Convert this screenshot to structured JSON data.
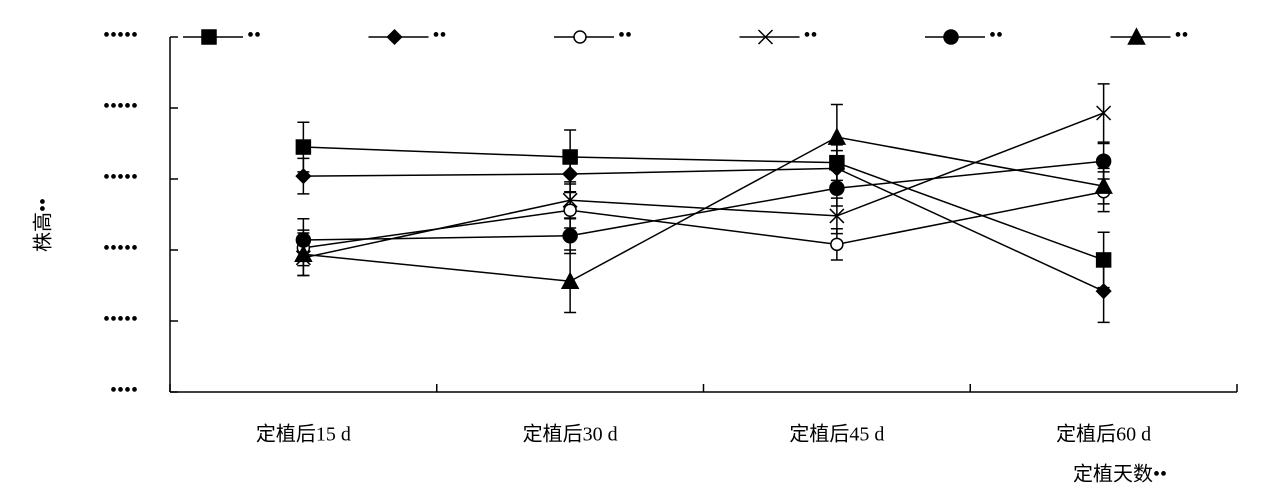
{
  "chart_data": {
    "type": "line",
    "x_label": "定植天数••",
    "y_label": "株高••",
    "categories": [
      "定植后15 d",
      "定植后30 d",
      "定植后45 d",
      "定植后60 d"
    ],
    "ylim": [
      0,
      50
    ],
    "yticks": [
      {
        "value": 0,
        "label": "••••"
      },
      {
        "value": 10,
        "label": "•••••"
      },
      {
        "value": 20,
        "label": "•••••"
      },
      {
        "value": 30,
        "label": "•••••"
      },
      {
        "value": 40,
        "label": "•••••"
      },
      {
        "value": 50,
        "label": "•••••"
      }
    ],
    "series": [
      {
        "name": "••",
        "color": "#000000",
        "marker": "square",
        "values": [
          34.5,
          33.1,
          32.3,
          18.6
        ],
        "errors": [
          3.5,
          3.8,
          2.5,
          3.9
        ]
      },
      {
        "name": "••",
        "color": "#000000",
        "marker": "diamond",
        "values": [
          30.4,
          30.7,
          31.5,
          14.2
        ],
        "errors": [
          2.5,
          2.5,
          2.5,
          4.4
        ]
      },
      {
        "name": "••",
        "color": "#000000",
        "marker": "open-circle",
        "values": [
          20.3,
          25.6,
          20.8,
          28.2
        ],
        "errors": [
          2.5,
          2.5,
          2.2,
          2.8
        ]
      },
      {
        "name": "••",
        "color": "#000000",
        "marker": "cross",
        "values": [
          18.9,
          27.0,
          24.8,
          39.3
        ],
        "errors": [
          2.5,
          2.6,
          2.5,
          4.1
        ]
      },
      {
        "name": "••",
        "color": "#000000",
        "marker": "filled-circle",
        "values": [
          21.4,
          22.0,
          28.7,
          32.5
        ],
        "errors": [
          3.0,
          2.5,
          2.5,
          2.5
        ]
      },
      {
        "name": "••",
        "color": "#000000",
        "marker": "triangle",
        "values": [
          19.4,
          15.6,
          35.9,
          29.0
        ],
        "errors": [
          3.0,
          4.4,
          4.6,
          2.5
        ]
      }
    ]
  }
}
